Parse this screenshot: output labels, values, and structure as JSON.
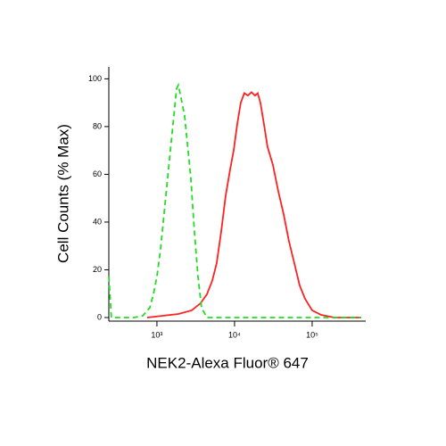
{
  "chart_data": {
    "type": "line",
    "xlabel": "NEK2-Alexa Fluor® 647",
    "ylabel": "Cell Counts (% Max)",
    "xscale": "log",
    "xlim": [
      240,
      490000
    ],
    "ylim": [
      -1.5,
      105
    ],
    "xticks": [
      {
        "value": 1000,
        "label": "10³"
      },
      {
        "value": 10000,
        "label": "10⁴"
      },
      {
        "value": 100000,
        "label": "10⁵"
      }
    ],
    "yticks": [
      0,
      20,
      40,
      60,
      80,
      100
    ],
    "series": [
      {
        "color": "#ff2020",
        "dash": false,
        "x": [
          748,
          1890,
          2805,
          3655,
          4400,
          5160,
          5890,
          6730,
          7680,
          8770,
          9750,
          10830,
          12030,
          13370,
          14860,
          16520,
          18360,
          19900,
          21540,
          23950,
          26610,
          31190,
          36560,
          42850,
          50220,
          58880,
          69000,
          80890,
          100000,
          130300,
          193800,
          428700
        ],
        "values": [
          0,
          1.5,
          3,
          6,
          9.7,
          15.4,
          22.8,
          36,
          51,
          62,
          70,
          81,
          90,
          94,
          93,
          94.4,
          93,
          94,
          90,
          81,
          71.5,
          64,
          53,
          43.4,
          32,
          22.8,
          13.5,
          7.9,
          3,
          1.1,
          0,
          0
        ]
      },
      {
        "color": "#22dd22",
        "dash": true,
        "x": [
          240,
          259,
          502,
          655,
          809,
          900,
          1000,
          1112,
          1269,
          1448,
          1610,
          1791,
          1888,
          2044,
          2272,
          2460,
          2735,
          3040,
          3380,
          3757,
          4404,
          428700
        ],
        "values": [
          17.2,
          0,
          0,
          0.7,
          4.1,
          9.7,
          17.2,
          28.5,
          47.2,
          65.9,
          80.9,
          95.9,
          97.4,
          92.1,
          84.6,
          73.4,
          58.4,
          36,
          17.2,
          4.1,
          0,
          0
        ]
      }
    ]
  }
}
